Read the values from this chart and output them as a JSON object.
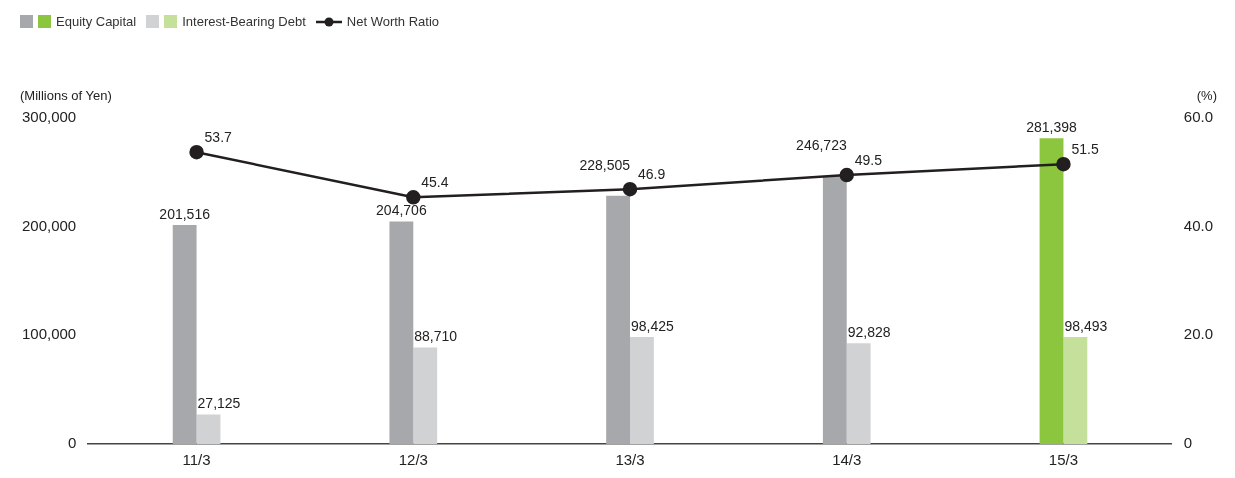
{
  "chart_data": {
    "type": "bar",
    "ylabel": "(Millions of Yen)",
    "y2label": "(%)",
    "categories": [
      "11/3",
      "12/3",
      "13/3",
      "14/3",
      "15/3"
    ],
    "ylim": [
      0,
      300000
    ],
    "yticks": [
      {
        "value": 0,
        "label": "0"
      },
      {
        "value": 100000,
        "label": "100,000"
      },
      {
        "value": 200000,
        "label": "200,000"
      },
      {
        "value": 300000,
        "label": "300,000"
      }
    ],
    "y2lim": [
      0,
      60
    ],
    "y2ticks": [
      {
        "value": 0,
        "label": "0"
      },
      {
        "value": 20,
        "label": "20.0"
      },
      {
        "value": 40,
        "label": "40.0"
      },
      {
        "value": 60,
        "label": "60.0"
      }
    ],
    "grid": false,
    "legend": "top left",
    "series": [
      {
        "name": "Equity Capital",
        "colors": [
          "#a7a8ab",
          "#a7a8ab",
          "#a7a8ab",
          "#a7a8ab",
          "#8cc63f"
        ],
        "values": [
          201516,
          204706,
          228505,
          246723,
          281398
        ],
        "value_labels": [
          "201,516",
          "204,706",
          "228,505",
          "246,723",
          "281,398"
        ]
      },
      {
        "name": "Interest-Bearing Debt",
        "colors": [
          "#d1d2d4",
          "#d1d2d4",
          "#d1d2d4",
          "#d1d2d4",
          "#c5e09b"
        ],
        "values": [
          27125,
          88710,
          98425,
          92828,
          98493
        ],
        "value_labels": [
          "27,125",
          "88,710",
          "98,425",
          "92,828",
          "98,493"
        ]
      },
      {
        "name": "Net Worth Ratio",
        "type": "line",
        "axis": "y2",
        "color": "#231f20",
        "marker": "circle",
        "line_style": "solid",
        "values": [
          53.7,
          45.4,
          46.9,
          49.5,
          51.5
        ],
        "value_labels": [
          "53.7",
          "45.4",
          "46.9",
          "49.5",
          "51.5"
        ]
      }
    ]
  }
}
